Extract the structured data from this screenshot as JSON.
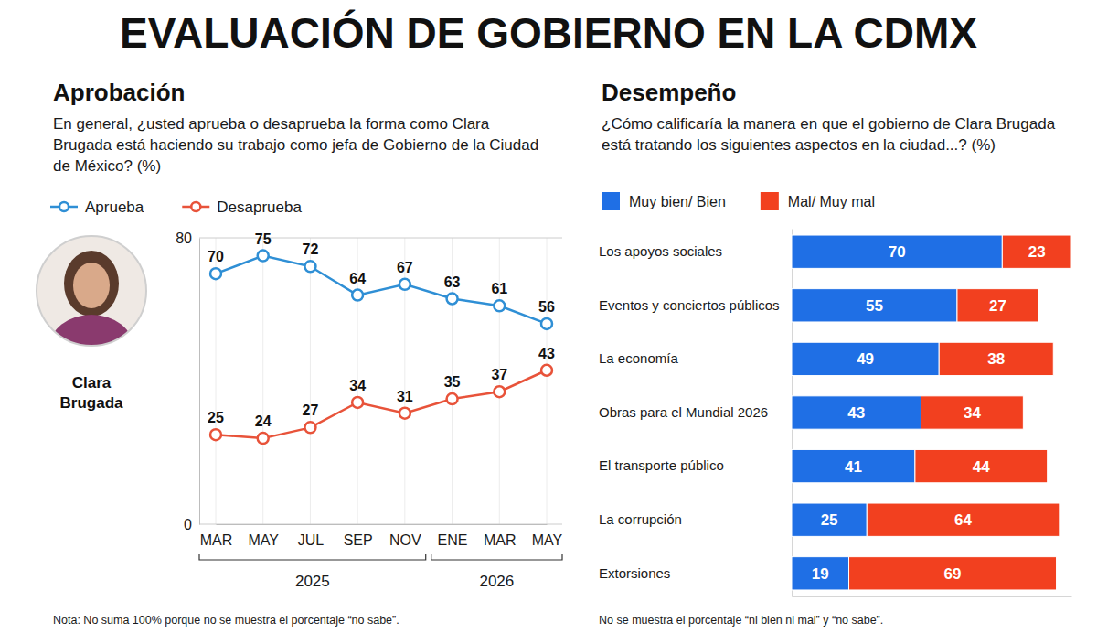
{
  "title": "EVALUACIÓN DE GOBIERNO EN LA CDMX",
  "person": "Clara Brugada",
  "chart_data": [
    {
      "type": "line",
      "title": "Aprobación",
      "subtitle": "En general, ¿usted aprueba o desaprueba la forma como Clara Brugada está haciendo su trabajo como jefa de Gobierno de la Ciudad de México? (%)",
      "note": "Nota: No suma 100% porque no se muestra el porcentaje “no sabe”.",
      "categories": [
        "MAR",
        "MAY",
        "JUL",
        "SEP",
        "NOV",
        "ENE",
        "MAR",
        "MAY"
      ],
      "x_groups": [
        {
          "label": "2025",
          "count": 5
        },
        {
          "label": "2026",
          "count": 3
        }
      ],
      "series": [
        {
          "name": "Aprueba",
          "color": "#2f8fd5",
          "marker": "circle",
          "line_style": "solid",
          "values": [
            70,
            75,
            72,
            64,
            67,
            63,
            61,
            56
          ]
        },
        {
          "name": "Desaprueba",
          "color": "#e8533a",
          "marker": "circle",
          "line_style": "solid",
          "values": [
            25,
            24,
            27,
            34,
            31,
            35,
            37,
            43
          ]
        }
      ],
      "ylim": [
        0,
        80
      ],
      "yticks": [
        0,
        80
      ],
      "grid": true,
      "legend": "top-left",
      "data_labels": true
    },
    {
      "type": "bar",
      "title": "Desempeño",
      "subtitle": "¿Cómo calificaría la manera en que el gobierno de Clara Brugada está tratando los siguientes aspectos en la ciudad...? (%)",
      "note": "No se muestra el porcentaje “ni bien ni mal” y “no sabe”.",
      "categories": [
        "Los apoyos sociales",
        "Eventos y conciertos públicos",
        "La economía",
        "Obras para el Mundial 2026",
        "El transporte público",
        "La corrupción",
        "Extorsiones"
      ],
      "series": [
        {
          "name": "Muy bien/ Bien",
          "color": "#1f6fe5",
          "values": [
            70,
            55,
            49,
            43,
            41,
            25,
            19
          ]
        },
        {
          "name": "Mal/ Muy mal",
          "color": "#f2401f",
          "values": [
            23,
            27,
            38,
            34,
            44,
            64,
            69
          ]
        }
      ],
      "xlim": [
        0,
        93
      ],
      "xticks": [],
      "orientation": "horizontal",
      "stacked": true,
      "data_labels": true,
      "tick_labels": "y",
      "legend": "top-left"
    }
  ]
}
